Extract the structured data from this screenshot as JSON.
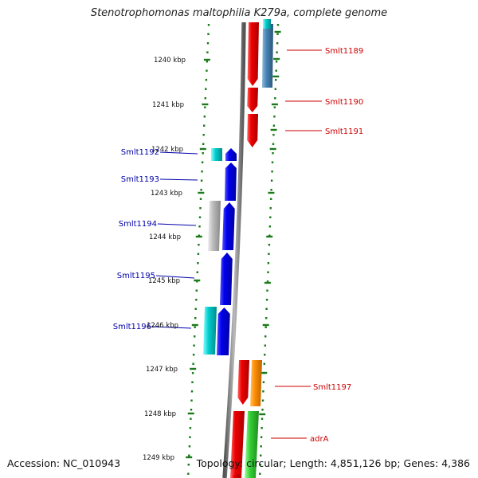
{
  "header": {
    "title": "Stenotrophomonas maltophilia K279a, complete genome"
  },
  "footer": {
    "accession": "Accession: NC_010943",
    "summary": "Topology: circular; Length: 4,851,126 bp; Genes: 4,386"
  },
  "ruler_labels": [
    "1240 kbp",
    "1241 kbp",
    "1242 kbp",
    "1243 kbp",
    "1244 kbp",
    "1245 kbp",
    "1246 kbp",
    "1247 kbp",
    "1248 kbp",
    "1249 kbp"
  ],
  "forward_labels": [
    "Smlt1189",
    "Smlt1190",
    "Smlt1191",
    "Smlt1197",
    "adrA"
  ],
  "reverse_labels": [
    "Smlt1192",
    "Smlt1193",
    "Smlt1194",
    "Smlt1195",
    "Smlt1196"
  ],
  "colors": {
    "forward_label": "#cc0000",
    "reverse_label": "#0000aa",
    "gene_red": "#ee0000",
    "gene_blue": "#0000ee",
    "gene_steelblue": "#4682b4",
    "gene_cyan": "#00cccc",
    "gene_gray": "#bbbbbb",
    "gene_orange": "#ff8c00",
    "gene_green": "#33cc33",
    "ticks": "#1a7a1a",
    "backbone": "#777777"
  }
}
